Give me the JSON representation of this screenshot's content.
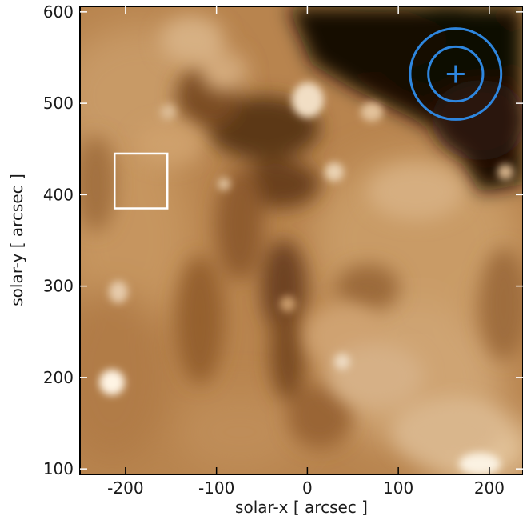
{
  "figure": {
    "xlabel": "solar-x [ arcsec ]",
    "ylabel": "solar-y [ arcsec ]",
    "x_ticks": [
      -200,
      -100,
      0,
      100,
      200
    ],
    "y_ticks": [
      100,
      200,
      300,
      400,
      500,
      600
    ],
    "x_tick_labels": [
      "-200",
      "-100",
      "0",
      "100",
      "200"
    ],
    "y_tick_labels": [
      "100",
      "200",
      "300",
      "400",
      "500",
      "600"
    ],
    "x_range": [
      -250,
      237
    ],
    "y_range": [
      94,
      606
    ],
    "image_colormap": "sdo-aia-gold",
    "overlays": {
      "box": {
        "x0": -212,
        "x1": -154,
        "y0": 385,
        "y1": 445,
        "color": "#ffffff"
      },
      "target": {
        "cx": 163,
        "cy": 532,
        "inner_r": 30,
        "outer_r": 50,
        "color": "#2e86de"
      }
    }
  }
}
